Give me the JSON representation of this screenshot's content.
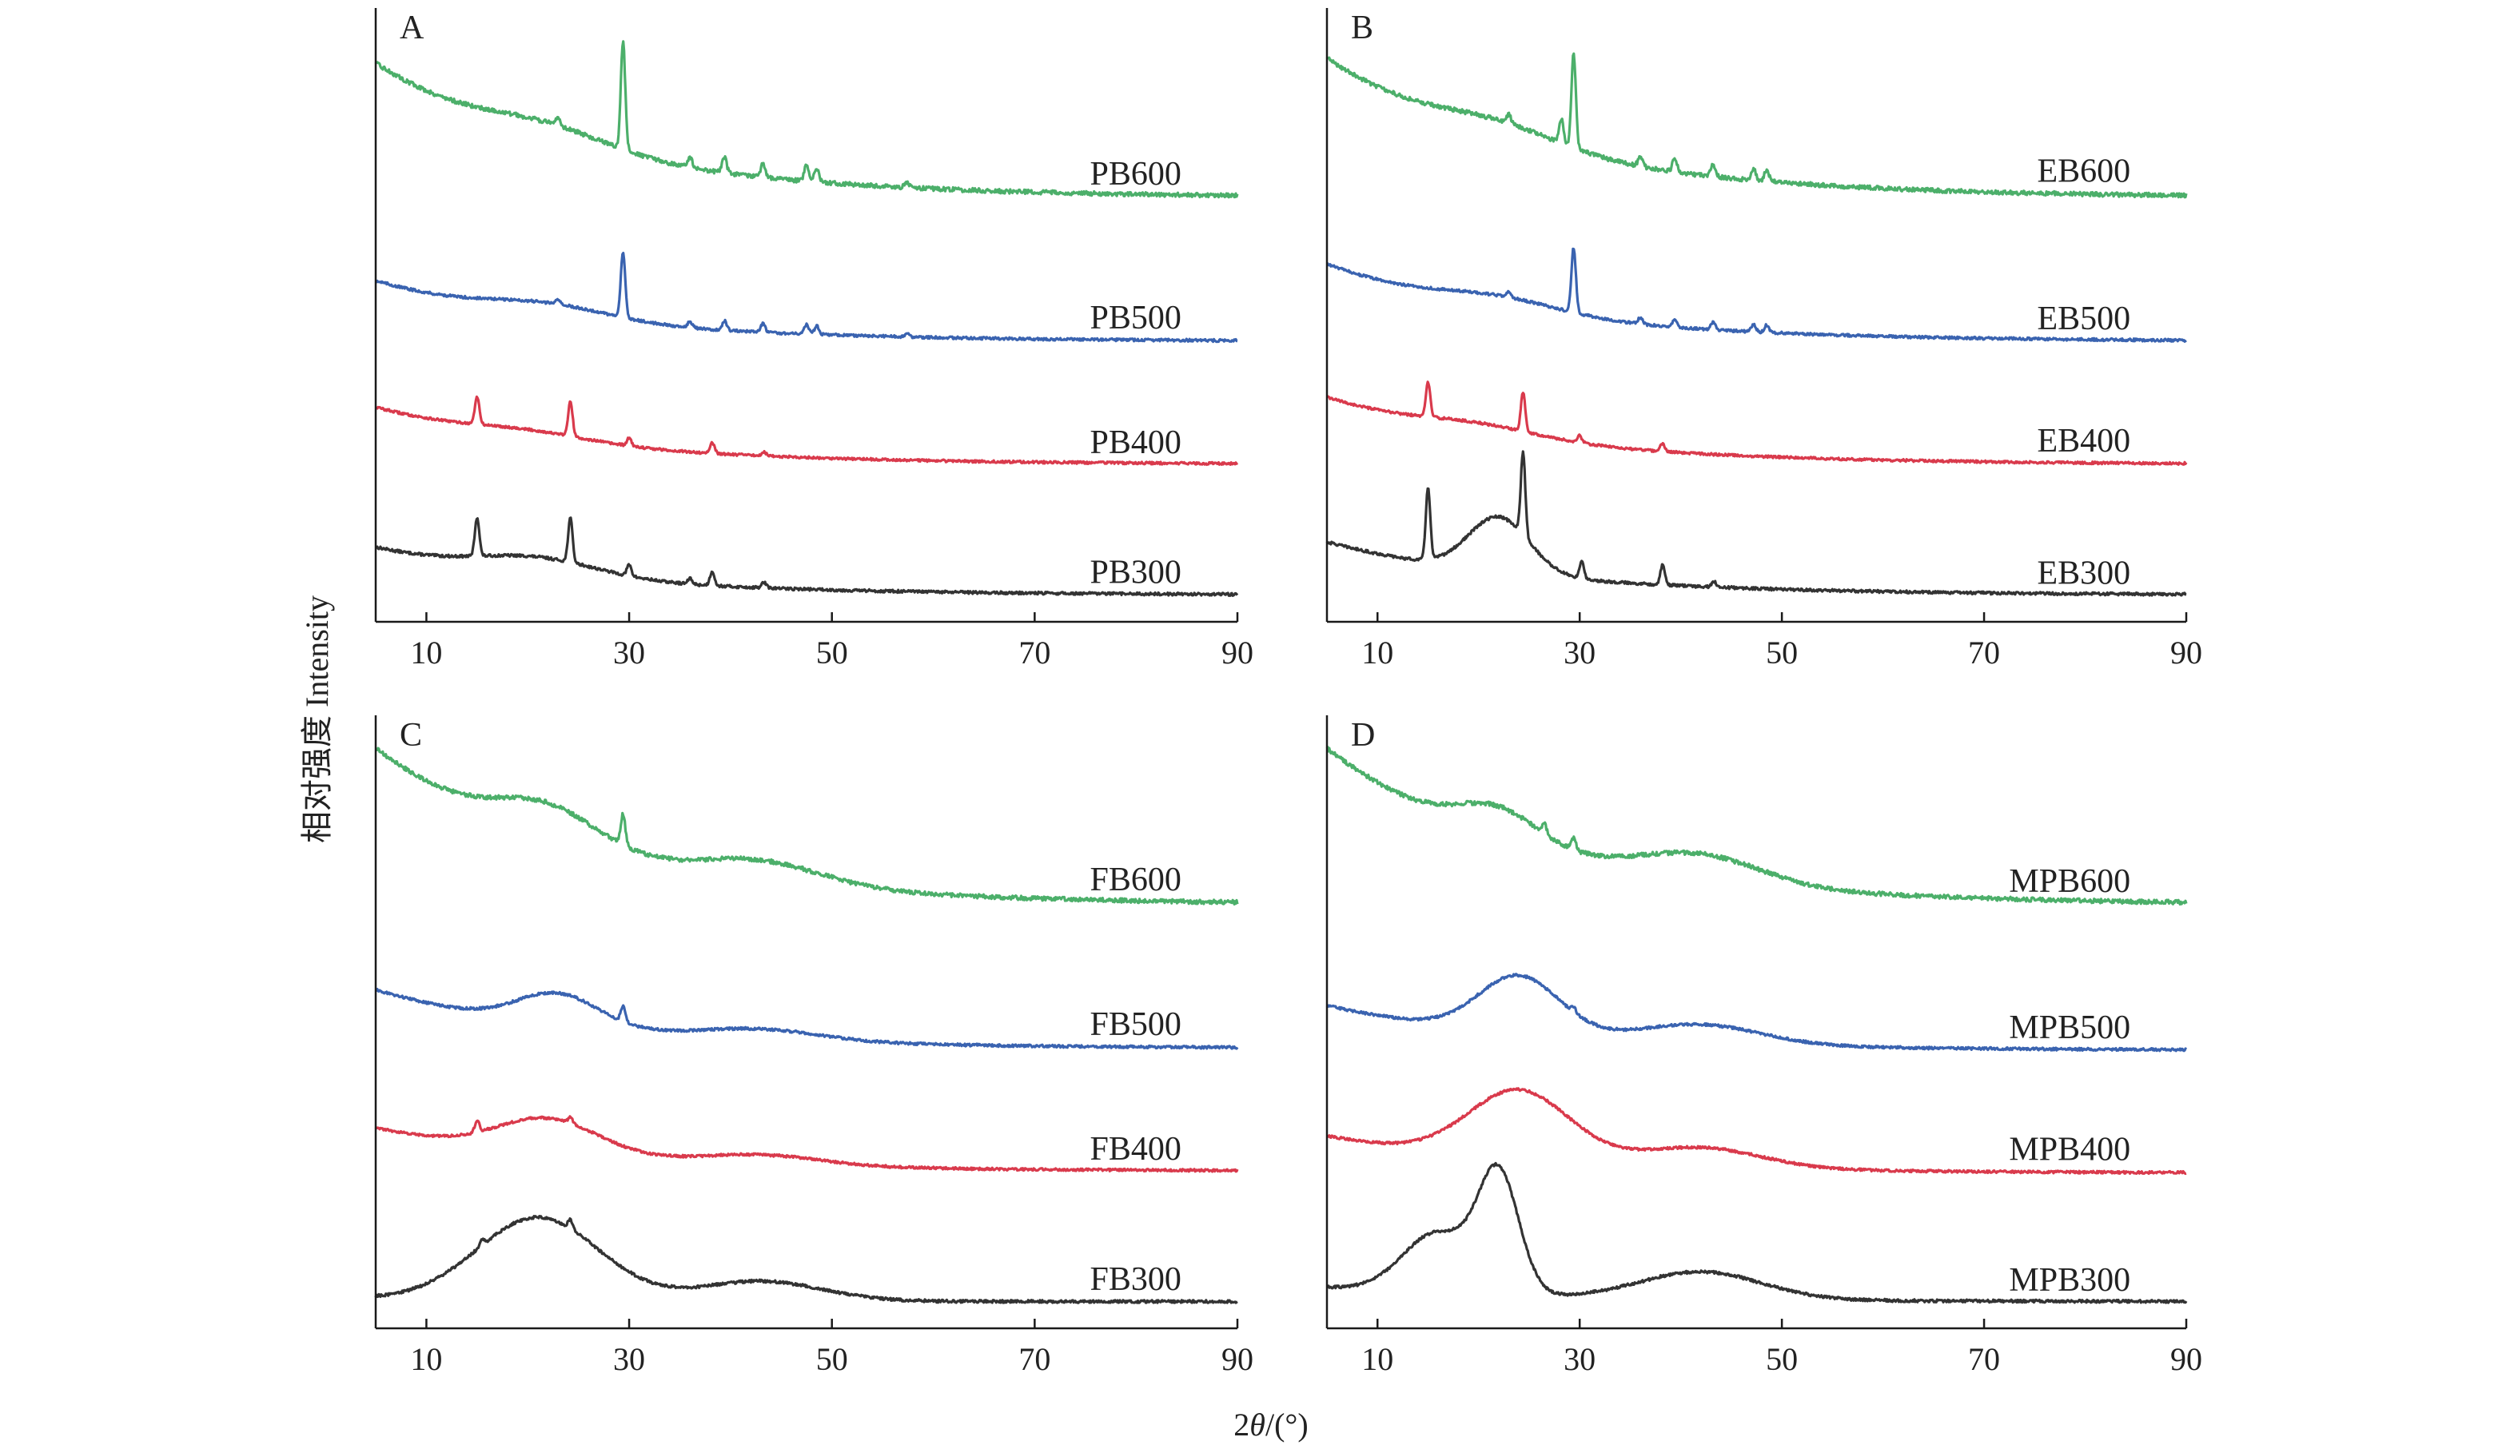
{
  "chart_data": {
    "type": "line",
    "figure_ylabel": "相对强度 Intensity",
    "figure_xlabel_prefix": "2",
    "figure_xlabel_theta": "θ",
    "figure_xlabel_suffix": "/(°)",
    "colors": {
      "600": "#4caf6a",
      "500": "#3a63b0",
      "400": "#d93a4c",
      "300": "#333333"
    },
    "panels": [
      {
        "letter": "A",
        "xlim": [
          5,
          90
        ],
        "xticks": [
          10,
          30,
          50,
          70,
          90
        ],
        "xtick_labels": [
          "10",
          "30",
          "50",
          "70",
          "90"
        ],
        "series": [
          {
            "name": "PB600",
            "temp": "600",
            "start_level": 0.82,
            "end_level": 0.04,
            "hump": [
              {
                "center": 22,
                "height": 0.1,
                "width": 6
              }
            ],
            "peaks": [
              {
                "x": 23.0,
                "h": 0.05
              },
              {
                "x": 29.4,
                "h": 0.62
              },
              {
                "x": 36.0,
                "h": 0.06
              },
              {
                "x": 39.4,
                "h": 0.09
              },
              {
                "x": 43.2,
                "h": 0.08
              },
              {
                "x": 47.5,
                "h": 0.09
              },
              {
                "x": 48.5,
                "h": 0.08
              },
              {
                "x": 57.4,
                "h": 0.03
              }
            ]
          },
          {
            "name": "PB500",
            "temp": "500",
            "start_level": 0.62,
            "end_level": 0.04,
            "hump": [
              {
                "center": 22,
                "height": 0.12,
                "width": 6
              }
            ],
            "peaks": [
              {
                "x": 23.0,
                "h": 0.05
              },
              {
                "x": 29.4,
                "h": 0.62
              },
              {
                "x": 36.0,
                "h": 0.06
              },
              {
                "x": 39.4,
                "h": 0.09
              },
              {
                "x": 43.2,
                "h": 0.08
              },
              {
                "x": 47.5,
                "h": 0.09
              },
              {
                "x": 48.5,
                "h": 0.08
              },
              {
                "x": 57.4,
                "h": 0.03
              }
            ]
          },
          {
            "name": "PB400",
            "temp": "400",
            "start_level": 0.62,
            "end_level": 0.04,
            "hump": [
              {
                "center": 20,
                "height": 0.08,
                "width": 6
              }
            ],
            "peaks": [
              {
                "x": 15.0,
                "h": 0.28
              },
              {
                "x": 24.2,
                "h": 0.35
              },
              {
                "x": 30.0,
                "h": 0.08
              },
              {
                "x": 38.2,
                "h": 0.11
              },
              {
                "x": 43.3,
                "h": 0.04
              }
            ]
          },
          {
            "name": "PB300",
            "temp": "300",
            "start_level": 0.45,
            "end_level": 0.02,
            "hump": [
              {
                "center": 21,
                "height": 0.15,
                "width": 6
              }
            ],
            "peaks": [
              {
                "x": 15.0,
                "h": 0.35
              },
              {
                "x": 24.2,
                "h": 0.4
              },
              {
                "x": 30.0,
                "h": 0.1
              },
              {
                "x": 36.0,
                "h": 0.05
              },
              {
                "x": 38.2,
                "h": 0.13
              },
              {
                "x": 43.3,
                "h": 0.05
              }
            ]
          }
        ]
      },
      {
        "letter": "B",
        "xlim": [
          5,
          90
        ],
        "xticks": [
          10,
          30,
          50,
          70,
          90
        ],
        "xtick_labels": [
          "10",
          "30",
          "50",
          "70",
          "90"
        ],
        "series": [
          {
            "name": "EB600",
            "temp": "600",
            "start_level": 0.85,
            "end_level": 0.04,
            "hump": [
              {
                "center": 22,
                "height": 0.1,
                "width": 6
              }
            ],
            "peaks": [
              {
                "x": 23.0,
                "h": 0.05
              },
              {
                "x": 28.2,
                "h": 0.14
              },
              {
                "x": 29.4,
                "h": 0.55
              },
              {
                "x": 36.0,
                "h": 0.06
              },
              {
                "x": 39.4,
                "h": 0.08
              },
              {
                "x": 43.2,
                "h": 0.07
              },
              {
                "x": 47.2,
                "h": 0.07
              },
              {
                "x": 48.5,
                "h": 0.07
              }
            ]
          },
          {
            "name": "EB500",
            "temp": "500",
            "start_level": 0.78,
            "end_level": 0.04,
            "hump": [
              {
                "center": 22,
                "height": 0.12,
                "width": 6
              }
            ],
            "peaks": [
              {
                "x": 23.0,
                "h": 0.05
              },
              {
                "x": 29.4,
                "h": 0.62
              },
              {
                "x": 36.0,
                "h": 0.06
              },
              {
                "x": 39.4,
                "h": 0.08
              },
              {
                "x": 43.2,
                "h": 0.07
              },
              {
                "x": 47.2,
                "h": 0.07
              },
              {
                "x": 48.5,
                "h": 0.07
              }
            ]
          },
          {
            "name": "EB400",
            "temp": "400",
            "start_level": 0.72,
            "end_level": 0.04,
            "hump": [
              {
                "center": 20,
                "height": 0.1,
                "width": 6
              }
            ],
            "peaks": [
              {
                "x": 15.0,
                "h": 0.35
              },
              {
                "x": 24.4,
                "h": 0.4
              },
              {
                "x": 30.0,
                "h": 0.07
              },
              {
                "x": 38.2,
                "h": 0.08
              }
            ]
          },
          {
            "name": "EB300",
            "temp": "300",
            "start_level": 0.5,
            "end_level": 0.02,
            "hump": [
              {
                "center": 22,
                "height": 0.5,
                "width": 3
              }
            ],
            "peaks": [
              {
                "x": 15.0,
                "h": 0.65
              },
              {
                "x": 24.4,
                "h": 0.75
              },
              {
                "x": 30.2,
                "h": 0.15
              },
              {
                "x": 38.2,
                "h": 0.18
              },
              {
                "x": 43.3,
                "h": 0.05
              }
            ]
          }
        ]
      },
      {
        "letter": "C",
        "xlim": [
          5,
          90
        ],
        "xticks": [
          10,
          30,
          50,
          70,
          90
        ],
        "xtick_labels": [
          "10",
          "30",
          "50",
          "70",
          "90"
        ],
        "series": [
          {
            "name": "FB600",
            "temp": "600",
            "start_level": 0.95,
            "end_level": 0.04,
            "hump": [
              {
                "center": 22,
                "height": 0.2,
                "width": 5
              },
              {
                "center": 43,
                "height": 0.12,
                "width": 6
              }
            ],
            "peaks": [
              {
                "x": 29.4,
                "h": 0.18
              }
            ]
          },
          {
            "name": "FB500",
            "temp": "500",
            "start_level": 0.6,
            "end_level": 0.04,
            "hump": [
              {
                "center": 23,
                "height": 0.3,
                "width": 4
              },
              {
                "center": 43,
                "height": 0.1,
                "width": 6
              }
            ],
            "peaks": [
              {
                "x": 29.4,
                "h": 0.15
              }
            ]
          },
          {
            "name": "FB400",
            "temp": "400",
            "start_level": 0.48,
            "end_level": 0.04,
            "hump": [
              {
                "center": 22,
                "height": 0.35,
                "width": 5
              },
              {
                "center": 43,
                "height": 0.1,
                "width": 6
              }
            ],
            "peaks": [
              {
                "x": 15.0,
                "h": 0.12
              },
              {
                "x": 24.2,
                "h": 0.06
              }
            ]
          },
          {
            "name": "FB300",
            "temp": "300",
            "start_level": 0.05,
            "end_level": 0.02,
            "hump": [
              {
                "center": 21,
                "height": 0.75,
                "width": 6
              },
              {
                "center": 43,
                "height": 0.18,
                "width": 6
              }
            ],
            "peaks": [
              {
                "x": 15.5,
                "h": 0.06
              },
              {
                "x": 24.2,
                "h": 0.08
              }
            ]
          }
        ]
      },
      {
        "letter": "D",
        "xlim": [
          5,
          90
        ],
        "xticks": [
          10,
          30,
          50,
          70,
          90
        ],
        "xtick_labels": [
          "10",
          "30",
          "50",
          "70",
          "90"
        ],
        "series": [
          {
            "name": "MPB600",
            "temp": "600",
            "start_level": 0.95,
            "end_level": 0.04,
            "hump": [
              {
                "center": 22,
                "height": 0.18,
                "width": 4
              },
              {
                "center": 42,
                "height": 0.15,
                "width": 6
              }
            ],
            "peaks": [
              {
                "x": 26.5,
                "h": 0.06
              },
              {
                "x": 29.4,
                "h": 0.07
              }
            ]
          },
          {
            "name": "MPB500",
            "temp": "500",
            "start_level": 0.45,
            "end_level": 0.02,
            "hump": [
              {
                "center": 24,
                "height": 0.55,
                "width": 4
              },
              {
                "center": 42,
                "height": 0.18,
                "width": 6
              }
            ],
            "peaks": [
              {
                "x": 29.4,
                "h": 0.05
              }
            ]
          },
          {
            "name": "MPB400",
            "temp": "400",
            "start_level": 0.4,
            "end_level": 0.02,
            "hump": [
              {
                "center": 24,
                "height": 0.7,
                "width": 5
              },
              {
                "center": 42,
                "height": 0.2,
                "width": 6
              }
            ],
            "peaks": []
          },
          {
            "name": "MPB300",
            "temp": "300",
            "start_level": 0.15,
            "end_level": 0.02,
            "hump": [
              {
                "center": 22,
                "height": 1.05,
                "width": 2
              },
              {
                "center": 16,
                "height": 0.55,
                "width": 3.5
              },
              {
                "center": 42,
                "height": 0.25,
                "width": 6
              }
            ],
            "peaks": []
          }
        ]
      }
    ]
  }
}
